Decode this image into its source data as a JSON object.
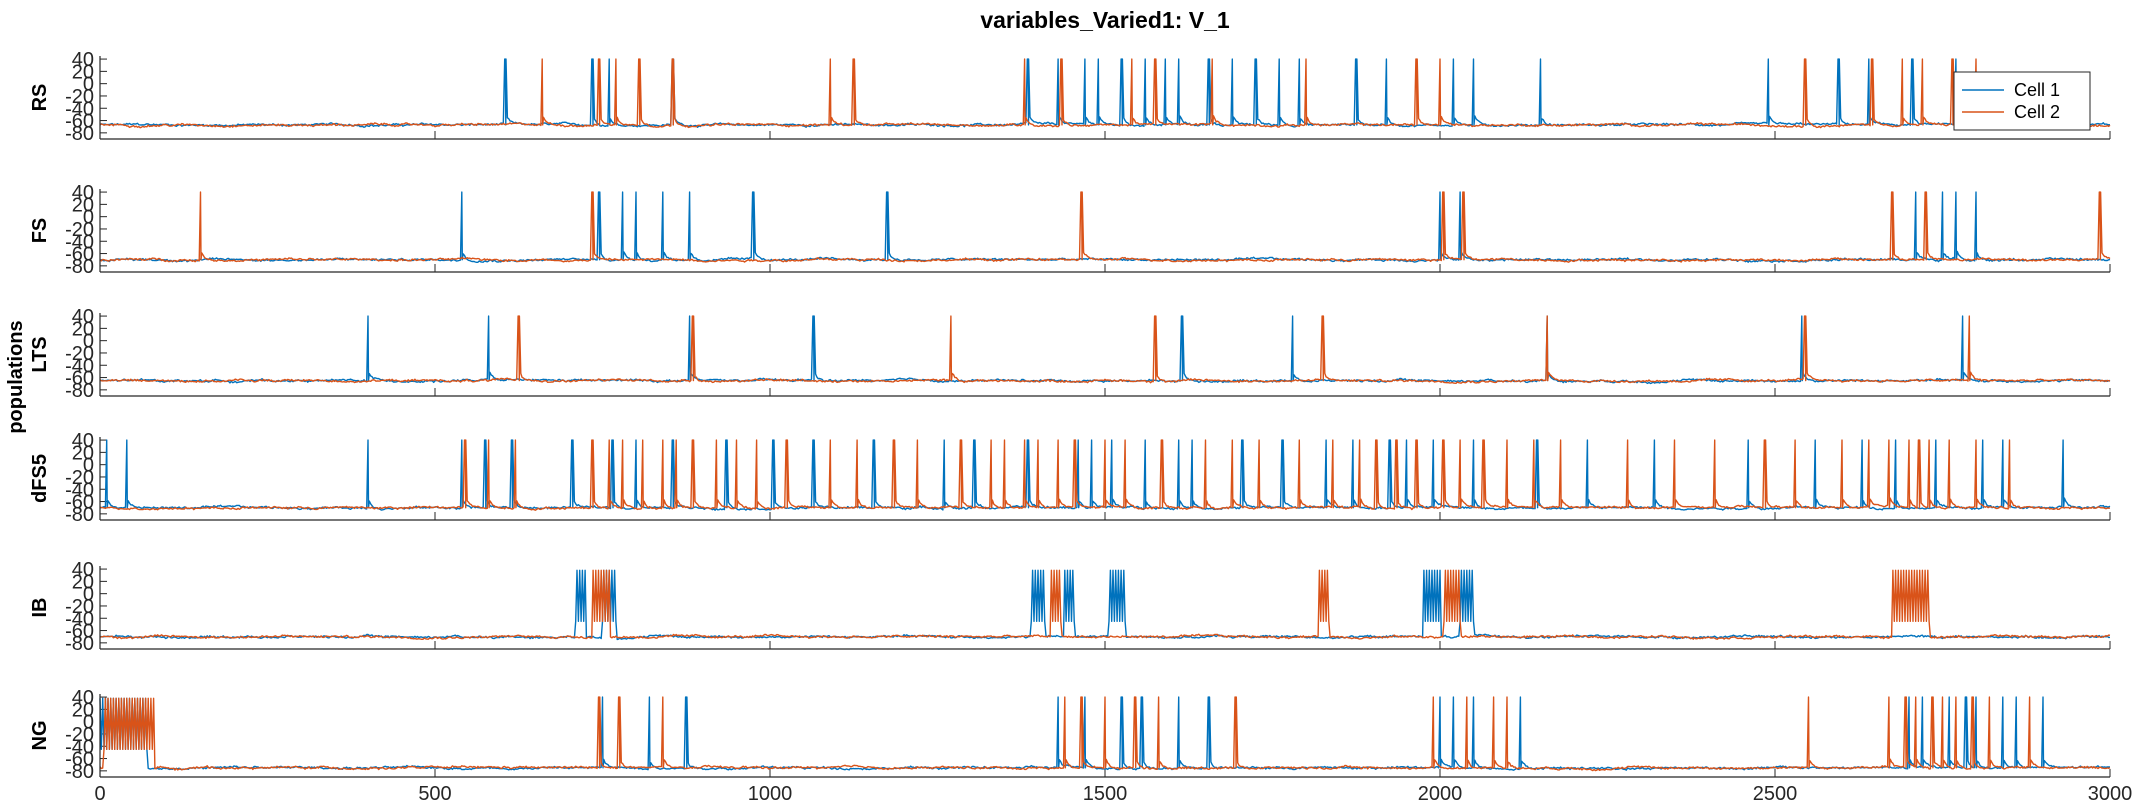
{
  "chart_data": {
    "type": "line",
    "title": "variables_Varied1: V_1",
    "ylabel": "populations",
    "xlim": [
      0,
      3000
    ],
    "ylim": [
      -90,
      45
    ],
    "x_ticks": [
      0,
      500,
      1000,
      1500,
      2000,
      2500,
      3000
    ],
    "y_ticks": [
      40,
      20,
      0,
      -20,
      -40,
      -60,
      -80
    ],
    "legend": {
      "position": "top-right",
      "entries": [
        "Cell 1",
        "Cell 2"
      ]
    },
    "colors": {
      "Cell 1": "#0072bd",
      "Cell 2": "#d95319"
    },
    "panels": [
      {
        "name": "RS",
        "baseline": -67,
        "series": [
          {
            "name": "Cell 1",
            "spikes": [
              605,
              735,
              760,
              855,
              1385,
              1430,
              1470,
              1490,
              1525,
              1560,
              1590,
              1610,
              1655,
              1690,
              1725,
              1760,
              1790,
              1875,
              1920,
              2020,
              2050,
              2150,
              2490,
              2595,
              2640,
              2705,
              2770
            ]
          },
          {
            "name": "Cell 2",
            "spikes": [
              660,
              745,
              770,
              805,
              855,
              1090,
              1125,
              1380,
              1435,
              1540,
              1575,
              1660,
              1800,
              1965,
              2000,
              2545,
              2645,
              2690,
              2720,
              2765,
              2800
            ]
          }
        ]
      },
      {
        "name": "FS",
        "baseline": -70,
        "series": [
          {
            "name": "Cell 1",
            "spikes": [
              540,
              745,
              780,
              800,
              840,
              880,
              975,
              1175,
              2000,
              2030,
              2710,
              2750,
              2770,
              2800
            ]
          },
          {
            "name": "Cell 2",
            "spikes": [
              150,
              735,
              1465,
              2005,
              2035,
              2675,
              2725,
              2985
            ]
          }
        ]
      },
      {
        "name": "LTS",
        "baseline": -65,
        "series": [
          {
            "name": "Cell 1",
            "spikes": [
              400,
              580,
              880,
              1065,
              1615,
              1780,
              2160,
              2540,
              2780
            ]
          },
          {
            "name": "Cell 2",
            "spikes": [
              625,
              885,
              1270,
              1575,
              1825,
              2160,
              2545,
              2790
            ]
          }
        ]
      },
      {
        "name": "dFS5",
        "baseline": -70,
        "series": [
          {
            "name": "Cell 1",
            "spikes": [
              10,
              40,
              400,
              540,
              575,
              615,
              705,
              765,
              800,
              855,
              935,
              1005,
              1065,
              1155,
              1260,
              1305,
              1385,
              1460,
              1480,
              1510,
              1560,
              1610,
              1630,
              1705,
              1765,
              1830,
              1870,
              1925,
              1950,
              1990,
              2050,
              2145,
              2220,
              2320,
              2460,
              2560,
              2630,
              2680,
              2740,
              2810,
              2840,
              2930
            ]
          },
          {
            "name": "Cell 2",
            "spikes": [
              545,
              580,
              620,
              735,
              760,
              780,
              810,
              840,
              860,
              885,
              920,
              950,
              980,
              1025,
              1090,
              1130,
              1185,
              1220,
              1285,
              1330,
              1350,
              1380,
              1400,
              1430,
              1455,
              1500,
              1530,
              1585,
              1650,
              1690,
              1730,
              1790,
              1840,
              1880,
              1905,
              1935,
              1965,
              2005,
              2030,
              2065,
              2100,
              2140,
              2180,
              2280,
              2350,
              2410,
              2485,
              2530,
              2600,
              2640,
              2670,
              2700,
              2715,
              2730,
              2760,
              2800,
              2850
            ]
          }
        ]
      },
      {
        "name": "IB",
        "baseline": -70,
        "series": [
          {
            "name": "Cell 1",
            "bursts": [
              [
                710,
                725
              ],
              [
                750,
                770
              ],
              [
                1390,
                1410
              ],
              [
                1440,
                1455
              ],
              [
                1505,
                1530
              ],
              [
                1975,
                2000
              ],
              [
                2030,
                2050
              ]
            ],
            "spikes": []
          },
          {
            "name": "Cell 2",
            "bursts": [
              [
                735,
                760
              ],
              [
                1420,
                1435
              ],
              [
                1820,
                1835
              ],
              [
                2005,
                2030
              ],
              [
                2675,
                2730
              ]
            ],
            "spikes": []
          }
        ]
      },
      {
        "name": "NG",
        "baseline": -75,
        "series": [
          {
            "name": "Cell 1",
            "bursts": [
              [
                0,
                70
              ]
            ],
            "spikes": [
              750,
              820,
              875,
              1430,
              1470,
              1525,
              1555,
              1610,
              1655,
              2000,
              2020,
              2050,
              2120,
              2700,
              2720,
              2760,
              2785,
              2800,
              2840,
              2860,
              2900
            ]
          },
          {
            "name": "Cell 2",
            "bursts": [
              [
                5,
                80
              ]
            ],
            "spikes": [
              745,
              775,
              840,
              1440,
              1465,
              1500,
              1545,
              1580,
              1695,
              1990,
              2040,
              2080,
              2100,
              2550,
              2670,
              2695,
              2710,
              2735,
              2750,
              2770,
              2795,
              2820,
              2880
            ]
          }
        ]
      }
    ]
  }
}
